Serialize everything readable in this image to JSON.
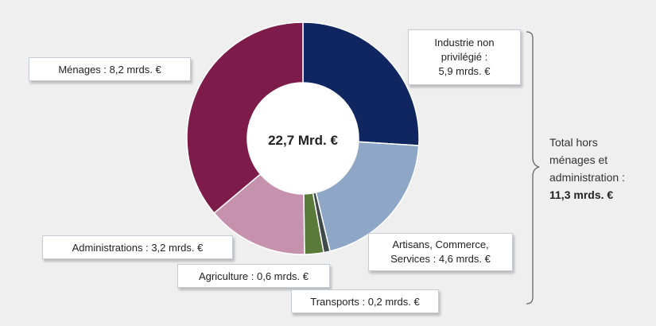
{
  "chart_data": {
    "type": "pie",
    "donut": true,
    "center_label": "22,7 Mrd. €",
    "slices": [
      {
        "label": "Industrie non privilégié : 5,9 mrds. €",
        "value": 5.9,
        "color": "#0f2660"
      },
      {
        "label": "Artisans, Commerce, Services : 4,6 mrds. €",
        "value": 4.6,
        "color": "#8fa7c7"
      },
      {
        "label": "Transports : 0,2 mrds. €",
        "value": 0.2,
        "color": "#3f4a4b"
      },
      {
        "label": "Agriculture : 0,6 mrds. €",
        "value": 0.6,
        "color": "#5a7a3a"
      },
      {
        "label": "Administrations : 3,2 mrds. €",
        "value": 3.2,
        "color": "#c591ac"
      },
      {
        "label": "Ménages : 8,2 mrds. €",
        "value": 8.2,
        "color": "#7d1b4a"
      }
    ]
  },
  "labels": {
    "industrie_1": "Industrie non",
    "industrie_2": "privilégié :",
    "industrie_3": "5,9 mrds. €",
    "artisans_1": "Artisans, Commerce,",
    "artisans_2": "Services : 4,6 mrds. €",
    "transports": "Transports : 0,2 mrds. €",
    "agriculture": "Agriculture : 0,6 mrds. €",
    "administrations": "Administrations : 3,2 mrds. €",
    "menages": "Ménages : 8,2 mrds. €"
  },
  "total_note": {
    "line1": "Total hors",
    "line2": "ménages et",
    "line3": "administration :",
    "line4": "11,3 mrds. €"
  }
}
